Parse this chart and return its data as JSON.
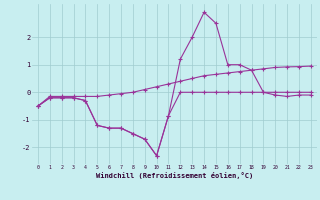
{
  "xlabel": "Windchill (Refroidissement éolien,°C)",
  "background_color": "#c8eef0",
  "grid_color": "#a0ccd0",
  "line_color": "#993399",
  "x_ticks": [
    0,
    1,
    2,
    3,
    4,
    5,
    6,
    7,
    8,
    9,
    10,
    11,
    12,
    13,
    14,
    15,
    16,
    17,
    18,
    19,
    20,
    21,
    22,
    23
  ],
  "xlim": [
    -0.5,
    23.5
  ],
  "ylim": [
    -2.6,
    3.2
  ],
  "yticks": [
    -2,
    -1,
    0,
    1,
    2
  ],
  "line1": {
    "x": [
      0,
      1,
      2,
      3,
      4,
      5,
      6,
      7,
      8,
      9,
      10,
      11,
      12,
      13,
      14,
      15,
      16,
      17,
      18,
      19,
      20,
      21,
      22,
      23
    ],
    "y": [
      -0.5,
      -0.2,
      -0.2,
      -0.2,
      -0.3,
      -1.2,
      -1.3,
      -1.3,
      -1.5,
      -1.7,
      -2.3,
      -0.85,
      0.0,
      0.0,
      0.0,
      0.0,
      0.0,
      0.0,
      0.0,
      0.0,
      0.0,
      0.0,
      0.0,
      0.0
    ]
  },
  "line2": {
    "x": [
      0,
      1,
      2,
      3,
      4,
      5,
      6,
      7,
      8,
      9,
      10,
      11,
      12,
      13,
      14,
      15,
      16,
      17,
      18,
      19,
      20,
      21,
      22,
      23
    ],
    "y": [
      -0.5,
      -0.2,
      -0.2,
      -0.2,
      -0.3,
      -1.2,
      -1.3,
      -1.3,
      -1.5,
      -1.7,
      -2.3,
      -0.85,
      1.2,
      2.0,
      2.9,
      2.5,
      1.0,
      1.0,
      0.8,
      0.0,
      -0.1,
      -0.15,
      -0.1,
      -0.1
    ]
  },
  "line3": {
    "x": [
      0,
      1,
      2,
      3,
      4,
      5,
      6,
      7,
      8,
      9,
      10,
      11,
      12,
      13,
      14,
      15,
      16,
      17,
      18,
      19,
      20,
      21,
      22,
      23
    ],
    "y": [
      -0.5,
      -0.15,
      -0.15,
      -0.15,
      -0.15,
      -0.15,
      -0.1,
      -0.05,
      0.0,
      0.1,
      0.2,
      0.3,
      0.4,
      0.5,
      0.6,
      0.65,
      0.7,
      0.75,
      0.8,
      0.85,
      0.9,
      0.92,
      0.93,
      0.95
    ]
  }
}
